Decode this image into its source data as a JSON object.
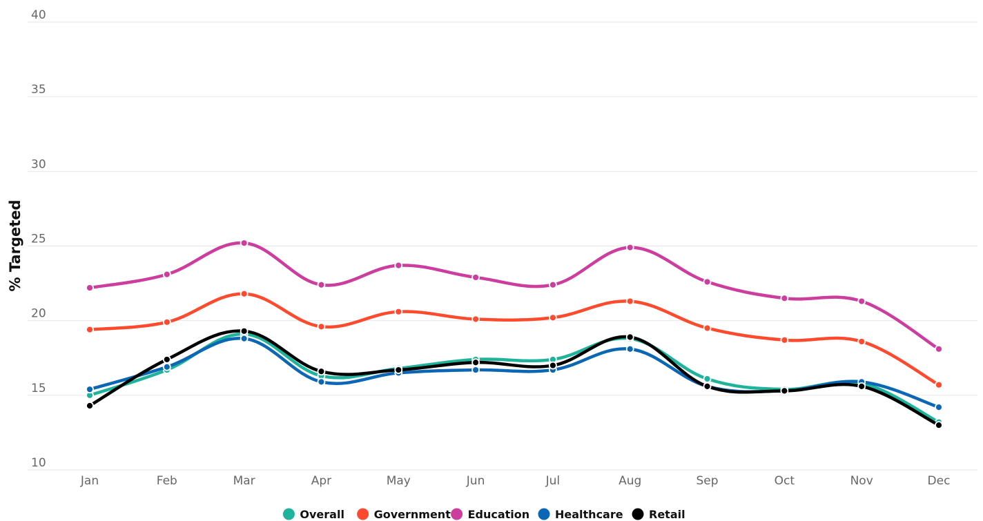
{
  "chart_data": {
    "type": "line",
    "ylabel": "% Targeted",
    "xlabel": "",
    "ylim": [
      10,
      40
    ],
    "yticks": [
      10,
      15,
      20,
      25,
      30,
      35,
      40
    ],
    "grid": true,
    "legend_position": "bottom",
    "categories": [
      "Jan",
      "Feb",
      "Mar",
      "Apr",
      "May",
      "Jun",
      "Jul",
      "Aug",
      "Sep",
      "Oct",
      "Nov",
      "Dec"
    ],
    "series": [
      {
        "name": "Overall",
        "color": "#1fb39b",
        "values": [
          15.0,
          16.7,
          19.1,
          16.3,
          16.8,
          17.4,
          17.4,
          18.8,
          16.1,
          15.4,
          15.8,
          13.2
        ]
      },
      {
        "name": "Government",
        "color": "#ff4a2e",
        "values": [
          19.4,
          19.9,
          21.8,
          19.6,
          20.6,
          20.1,
          20.2,
          21.3,
          19.5,
          18.7,
          18.6,
          15.7
        ]
      },
      {
        "name": "Education",
        "color": "#cc3d9e",
        "values": [
          22.2,
          23.1,
          25.2,
          22.4,
          23.7,
          22.9,
          22.4,
          24.9,
          22.6,
          21.5,
          21.3,
          18.1
        ]
      },
      {
        "name": "Healthcare",
        "color": "#0b67b5",
        "values": [
          15.4,
          16.9,
          18.8,
          15.9,
          16.5,
          16.7,
          16.7,
          18.1,
          15.6,
          15.3,
          15.9,
          14.2
        ]
      },
      {
        "name": "Retail",
        "color": "#000000",
        "values": [
          14.3,
          17.4,
          19.3,
          16.6,
          16.7,
          17.2,
          17.0,
          18.9,
          15.6,
          15.3,
          15.6,
          13.0
        ]
      }
    ]
  }
}
